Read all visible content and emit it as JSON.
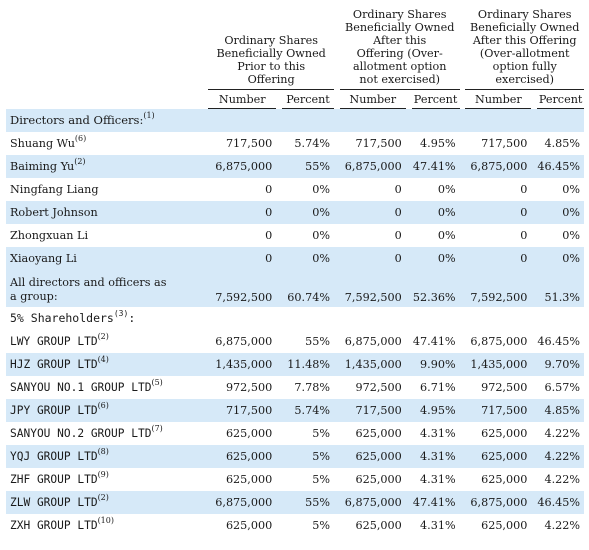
{
  "headers": {
    "group1": [
      "Ordinary Shares",
      "Beneficially Owned",
      "Prior to this",
      "Offering"
    ],
    "group2": [
      "Ordinary Shares",
      "Beneficially Owned",
      "After this",
      "Offering (Over-",
      "allotment option",
      "not exercised)"
    ],
    "group3": [
      "Ordinary Shares",
      "Beneficially Owned",
      "After this Offering",
      "(Over-allotment",
      "option fully",
      "exercised)"
    ],
    "number": "Number",
    "percent": "Percent"
  },
  "sections": {
    "directors": {
      "label": "Directors and Officers:",
      "sup": "(1)"
    },
    "shareholders": {
      "label": "5% Shareholders",
      "sup": "(3)",
      "suffix": ":"
    }
  },
  "rows": [
    {
      "name": "Shuang Wu",
      "sup": "(6)",
      "n1": "717,500",
      "p1": "5.74%",
      "n2": "717,500",
      "p2": "4.95%",
      "n3": "717,500",
      "p3": "4.85%"
    },
    {
      "name": "Baiming Yu",
      "sup": "(2)",
      "n1": "6,875,000",
      "p1": "55%",
      "n2": "6,875,000",
      "p2": "47.41%",
      "n3": "6,875,000",
      "p3": "46.45%"
    },
    {
      "name": "Ningfang Liang",
      "sup": "",
      "n1": "0",
      "p1": "0%",
      "n2": "0",
      "p2": "0%",
      "n3": "0",
      "p3": "0%"
    },
    {
      "name": "Robert Johnson",
      "sup": "",
      "n1": "0",
      "p1": "0%",
      "n2": "0",
      "p2": "0%",
      "n3": "0",
      "p3": "0%"
    },
    {
      "name": "Zhongxuan Li",
      "sup": "",
      "n1": "0",
      "p1": "0%",
      "n2": "0",
      "p2": "0%",
      "n3": "0",
      "p3": "0%"
    },
    {
      "name": "Xiaoyang Li",
      "sup": "",
      "n1": "0",
      "p1": "0%",
      "n2": "0",
      "p2": "0%",
      "n3": "0",
      "p3": "0%"
    }
  ],
  "total": {
    "line1": "All directors and officers as",
    "line2": "a group:",
    "n1": "7,592,500",
    "p1": "60.74%",
    "n2": "7,592,500",
    "p2": "52.36%",
    "n3": "7,592,500",
    "p3": "51.3%"
  },
  "holders": [
    {
      "name": "LWY GROUP LTD",
      "sup": "(2)",
      "n1": "6,875,000",
      "p1": "55%",
      "n2": "6,875,000",
      "p2": "47.41%",
      "n3": "6,875,000",
      "p3": "46.45%"
    },
    {
      "name": "HJZ GROUP LTD",
      "sup": "(4)",
      "n1": "1,435,000",
      "p1": "11.48%",
      "n2": "1,435,000",
      "p2": "9.90%",
      "n3": "1,435,000",
      "p3": "9.70%"
    },
    {
      "name": "SANYOU NO.1 GROUP LTD",
      "sup": "(5)",
      "n1": "972,500",
      "p1": "7.78%",
      "n2": "972,500",
      "p2": "6.71%",
      "n3": "972,500",
      "p3": "6.57%"
    },
    {
      "name": "JPY GROUP LTD",
      "sup": "(6)",
      "n1": "717,500",
      "p1": "5.74%",
      "n2": "717,500",
      "p2": "4.95%",
      "n3": "717,500",
      "p3": "4.85%"
    },
    {
      "name": "SANYOU NO.2 GROUP LTD",
      "sup": "(7)",
      "n1": "625,000",
      "p1": "5%",
      "n2": "625,000",
      "p2": "4.31%",
      "n3": "625,000",
      "p3": "4.22%"
    },
    {
      "name": "YQJ GROUP LTD",
      "sup": "(8)",
      "n1": "625,000",
      "p1": "5%",
      "n2": "625,000",
      "p2": "4.31%",
      "n3": "625,000",
      "p3": "4.22%"
    },
    {
      "name": "ZHF GROUP LTD",
      "sup": "(9)",
      "n1": "625,000",
      "p1": "5%",
      "n2": "625,000",
      "p2": "4.31%",
      "n3": "625,000",
      "p3": "4.22%"
    },
    {
      "name": "ZLW GROUP LTD",
      "sup": "(2)",
      "n1": "6,875,000",
      "p1": "55%",
      "n2": "6,875,000",
      "p2": "47.41%",
      "n3": "6,875,000",
      "p3": "46.45%"
    },
    {
      "name": "ZXH GROUP LTD",
      "sup": "(10)",
      "n1": "625,000",
      "p1": "5%",
      "n2": "625,000",
      "p2": "4.31%",
      "n3": "625,000",
      "p3": "4.22%"
    }
  ],
  "colors": {
    "shade": "#d6e9f8"
  }
}
